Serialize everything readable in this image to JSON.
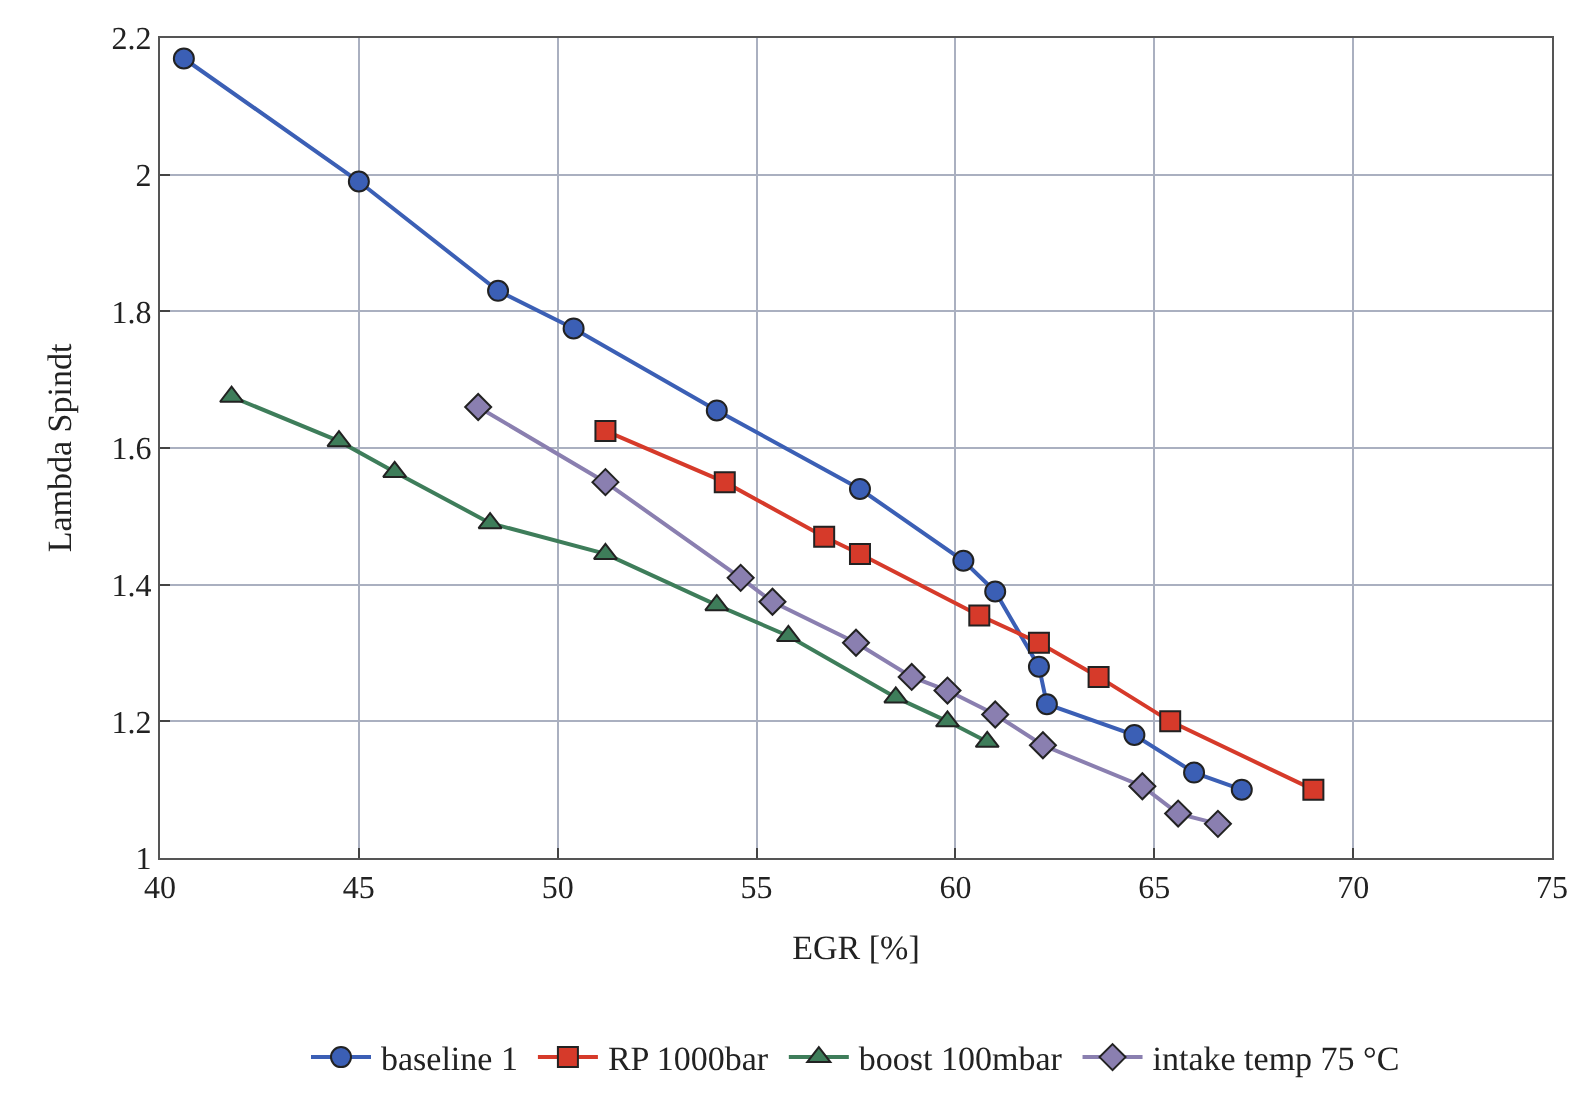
{
  "chart_data": {
    "type": "line",
    "xlabel": "EGR [%]",
    "ylabel": "Lambda Spindt",
    "xlim": [
      40,
      75
    ],
    "xticks": [
      40,
      45,
      50,
      55,
      60,
      65,
      70,
      75
    ],
    "ylim": [
      1,
      2.2
    ],
    "yticks": [
      {
        "value": 1,
        "label": "1"
      },
      {
        "value": 1.2,
        "label": "1.2"
      },
      {
        "value": 1.4,
        "label": "1.4"
      },
      {
        "value": 1.6,
        "label": "1.6"
      },
      {
        "value": 1.8,
        "label": "1.8"
      },
      {
        "value": 2,
        "label": "2"
      },
      {
        "value": 2.2,
        "label": "2.2"
      }
    ],
    "grid": true,
    "legend": "bottom",
    "line_style": "solid",
    "series": [
      {
        "name": "baseline 1",
        "color": "#3b5fb5",
        "marker": "circle",
        "x": [
          40.6,
          45,
          48.5,
          50.4,
          54,
          57.6,
          60.2,
          61,
          62.1,
          62.3,
          64.5,
          66,
          67.2
        ],
        "values": [
          2.17,
          1.99,
          1.83,
          1.775,
          1.655,
          1.54,
          1.435,
          1.39,
          1.28,
          1.225,
          1.18,
          1.125,
          1.1
        ]
      },
      {
        "name": "RP 1000bar",
        "color": "#d63a2a",
        "marker": "square",
        "x": [
          51.2,
          54.2,
          56.7,
          57.6,
          60.6,
          62.1,
          63.6,
          65.4,
          69
        ],
        "values": [
          1.625,
          1.55,
          1.47,
          1.445,
          1.355,
          1.315,
          1.265,
          1.2,
          1.1
        ]
      },
      {
        "name": "boost 100mbar",
        "color": "#3e7d5a",
        "marker": "triangle",
        "x": [
          41.8,
          44.5,
          45.9,
          48.3,
          51.2,
          54,
          55.8,
          58.5,
          59.8,
          60.8
        ],
        "values": [
          1.675,
          1.61,
          1.565,
          1.49,
          1.445,
          1.37,
          1.325,
          1.235,
          1.2,
          1.17
        ]
      },
      {
        "name": "intake temp 75 °C",
        "color": "#8a7fb0",
        "marker": "diamond",
        "x": [
          48,
          51.2,
          54.6,
          55.4,
          57.5,
          58.9,
          59.8,
          61,
          62.2,
          64.7,
          65.6,
          66.6
        ],
        "values": [
          1.66,
          1.55,
          1.41,
          1.375,
          1.315,
          1.265,
          1.245,
          1.21,
          1.165,
          1.105,
          1.065,
          1.05
        ]
      }
    ]
  }
}
